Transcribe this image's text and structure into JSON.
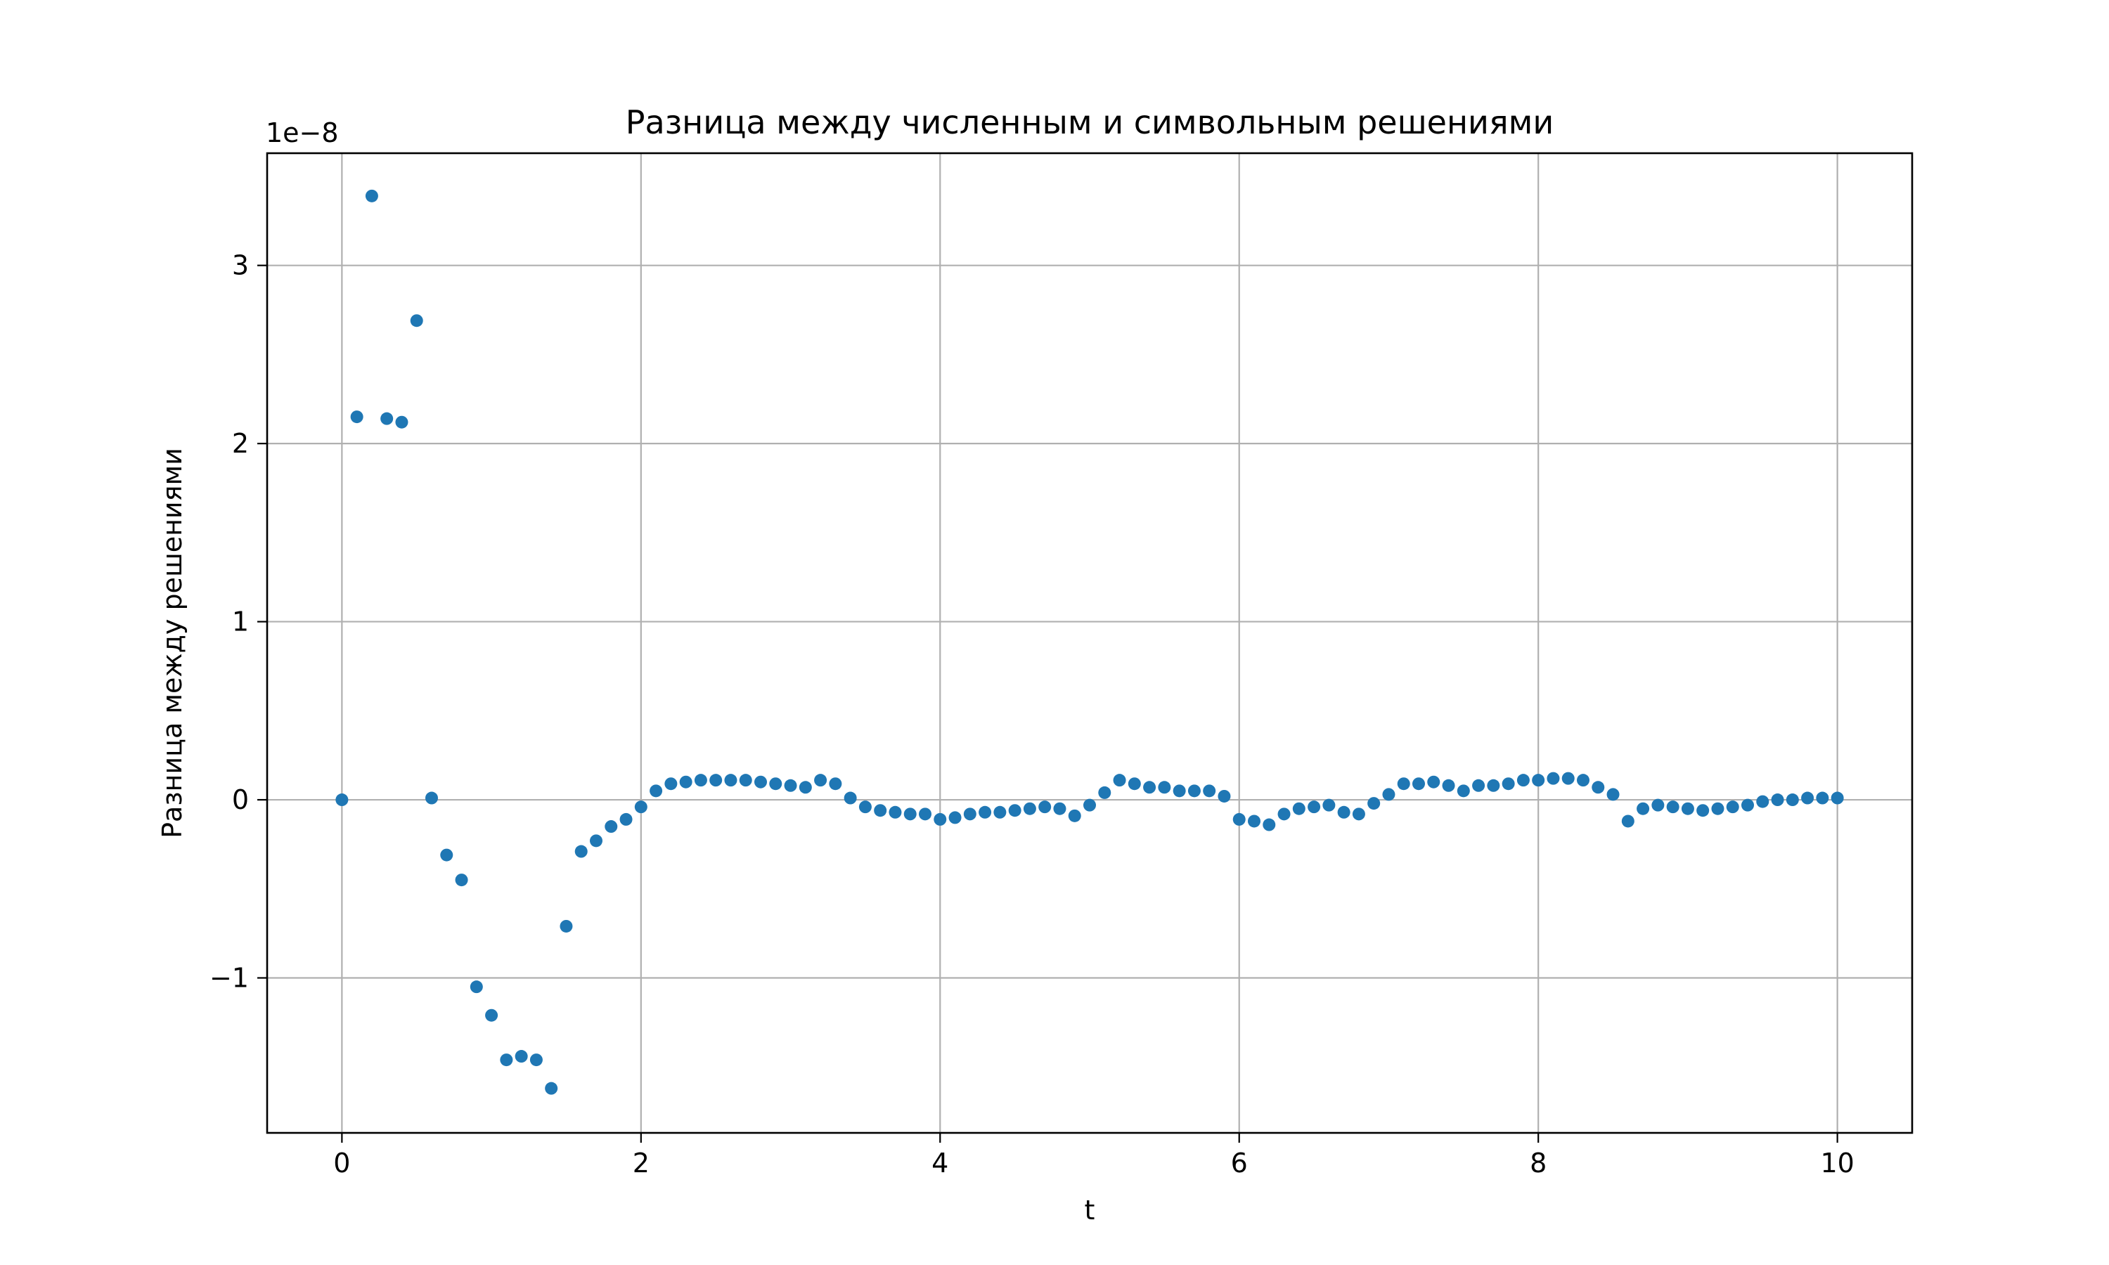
{
  "chart_data": {
    "type": "scatter",
    "title": "Разница между численным и символьным решениями",
    "xlabel": "t",
    "ylabel": "Разница между решениями",
    "y_offset_label": "1e−8",
    "y_scale": 1e-08,
    "xlim": [
      -0.5,
      10.5
    ],
    "ylim": [
      -1.87,
      3.63
    ],
    "x_ticks": [
      0,
      2,
      4,
      6,
      8,
      10
    ],
    "x_tick_labels": [
      "0",
      "2",
      "4",
      "6",
      "8",
      "10"
    ],
    "y_ticks": [
      -1,
      0,
      1,
      2,
      3
    ],
    "y_tick_labels": [
      "−1",
      "0",
      "1",
      "2",
      "3"
    ],
    "grid": true,
    "marker_color": "#1f77b4",
    "x": [
      0.0,
      0.1,
      0.2,
      0.3,
      0.4,
      0.5,
      0.6,
      0.7,
      0.8,
      0.9,
      1.0,
      1.1,
      1.2,
      1.3,
      1.4,
      1.5,
      1.6,
      1.7,
      1.8,
      1.9,
      2.0,
      2.1,
      2.2,
      2.3,
      2.4,
      2.5,
      2.6,
      2.7,
      2.8,
      2.9,
      3.0,
      3.1,
      3.2,
      3.3,
      3.4,
      3.5,
      3.6,
      3.7,
      3.8,
      3.9,
      4.0,
      4.1,
      4.2,
      4.3,
      4.4,
      4.5,
      4.6,
      4.7,
      4.8,
      4.9,
      5.0,
      5.1,
      5.2,
      5.3,
      5.4,
      5.5,
      5.6,
      5.7,
      5.8,
      5.9,
      6.0,
      6.1,
      6.2,
      6.3,
      6.4,
      6.5,
      6.6,
      6.7,
      6.8,
      6.9,
      7.0,
      7.1,
      7.2,
      7.3,
      7.4,
      7.5,
      7.6,
      7.7,
      7.8,
      7.9,
      8.0,
      8.1,
      8.2,
      8.3,
      8.4,
      8.5,
      8.6,
      8.7,
      8.8,
      8.9,
      9.0,
      9.1,
      9.2,
      9.3,
      9.4,
      9.5,
      9.6,
      9.7,
      9.8,
      9.9,
      10.0
    ],
    "y": [
      0.0,
      2.15,
      3.39,
      2.14,
      2.12,
      2.69,
      0.01,
      -0.31,
      -0.45,
      -1.05,
      -1.21,
      -1.46,
      -1.44,
      -1.46,
      -1.62,
      -0.71,
      -0.29,
      -0.23,
      -0.15,
      -0.11,
      -0.04,
      0.05,
      0.09,
      0.1,
      0.11,
      0.11,
      0.11,
      0.11,
      0.1,
      0.09,
      0.08,
      0.07,
      0.11,
      0.09,
      0.01,
      -0.04,
      -0.06,
      -0.07,
      -0.08,
      -0.08,
      -0.11,
      -0.1,
      -0.08,
      -0.07,
      -0.07,
      -0.06,
      -0.05,
      -0.04,
      -0.05,
      -0.09,
      -0.03,
      0.04,
      0.11,
      0.09,
      0.07,
      0.07,
      0.05,
      0.05,
      0.05,
      0.02,
      -0.11,
      -0.12,
      -0.14,
      -0.08,
      -0.05,
      -0.04,
      -0.03,
      -0.07,
      -0.08,
      -0.02,
      0.03,
      0.09,
      0.09,
      0.1,
      0.08,
      0.05,
      0.08,
      0.08,
      0.09,
      0.11,
      0.11,
      0.12,
      0.12,
      0.11,
      0.07,
      0.03,
      -0.12,
      -0.05,
      -0.03,
      -0.04,
      -0.05,
      -0.06,
      -0.05,
      -0.04,
      -0.03,
      -0.01,
      0.0,
      0.0,
      0.01,
      0.01,
      0.01
    ]
  }
}
